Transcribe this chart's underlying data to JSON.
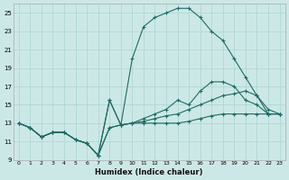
{
  "xlabel": "Humidex (Indice chaleur)",
  "bg_color": "#cce8e6",
  "line_color": "#1f6b65",
  "xlim": [
    -0.5,
    23.5
  ],
  "ylim": [
    9,
    26
  ],
  "xticks": [
    0,
    1,
    2,
    3,
    4,
    5,
    6,
    7,
    8,
    9,
    10,
    11,
    12,
    13,
    14,
    15,
    16,
    17,
    18,
    19,
    20,
    21,
    22,
    23
  ],
  "yticks": [
    9,
    11,
    13,
    15,
    17,
    19,
    21,
    23,
    25
  ],
  "grid_color": "#b0d8d4",
  "lines": [
    {
      "x": [
        0,
        1,
        2,
        3,
        4,
        5,
        6,
        7,
        8,
        9,
        10,
        11,
        12,
        13,
        14,
        15,
        16,
        17,
        18,
        19,
        20,
        21,
        22,
        23
      ],
      "y": [
        13,
        12.5,
        11.5,
        12,
        12,
        11.2,
        10.8,
        9.5,
        12.5,
        12.8,
        13,
        13,
        13,
        13,
        13,
        13.2,
        13.5,
        13.8,
        14,
        14,
        14,
        14,
        14,
        14
      ]
    },
    {
      "x": [
        0,
        1,
        2,
        3,
        4,
        5,
        6,
        7,
        8,
        9,
        10,
        11,
        12,
        13,
        14,
        15,
        16,
        17,
        18,
        19,
        20,
        21,
        22,
        23
      ],
      "y": [
        13,
        12.5,
        11.5,
        12,
        12,
        11.2,
        10.8,
        9.5,
        12.5,
        12.8,
        13,
        13.2,
        13.5,
        13.8,
        14,
        14.5,
        15,
        15.5,
        16,
        16.2,
        16.5,
        16,
        14.5,
        14
      ]
    },
    {
      "x": [
        0,
        1,
        2,
        3,
        4,
        5,
        6,
        7,
        8,
        9,
        10,
        11,
        12,
        13,
        14,
        15,
        16,
        17,
        18,
        19,
        20,
        21,
        22,
        23
      ],
      "y": [
        13,
        12.5,
        11.5,
        12,
        12,
        11.2,
        10.8,
        9.5,
        15.5,
        12.8,
        13,
        13.5,
        14,
        14.5,
        15.5,
        15,
        16.5,
        17.5,
        17.5,
        17,
        15.5,
        15,
        14,
        14
      ]
    },
    {
      "x": [
        0,
        1,
        2,
        3,
        4,
        5,
        6,
        7,
        8,
        9,
        10,
        11,
        12,
        13,
        14,
        15,
        16,
        17,
        18,
        19,
        20,
        21,
        22,
        23
      ],
      "y": [
        13,
        12.5,
        11.5,
        12,
        12,
        11.2,
        10.8,
        9.5,
        15.5,
        12.8,
        20,
        23.5,
        24.5,
        25,
        25.5,
        25.5,
        24.5,
        23,
        22,
        20,
        18,
        16,
        14,
        14
      ]
    }
  ]
}
